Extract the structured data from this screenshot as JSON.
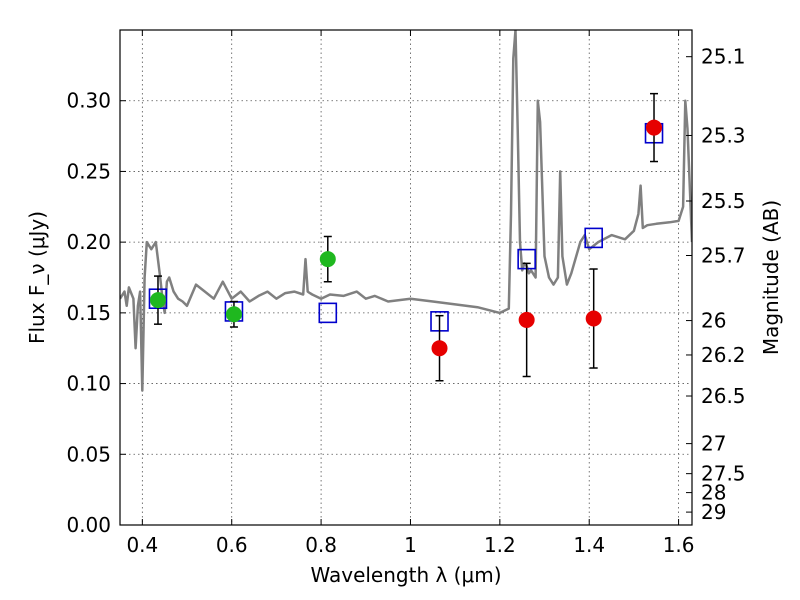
{
  "chart_data": {
    "type": "scatter",
    "xlabel": "Wavelength λ (μm)",
    "ylabel": "Flux F_ν (μJy)",
    "ylabel_right": "Magnitude (AB)",
    "xlim": [
      0.35,
      1.63
    ],
    "ylim": [
      0.0,
      0.35
    ],
    "grid": true,
    "x_ticks": [
      "0.4",
      "0.6",
      "0.8",
      "1",
      "1.2",
      "1.4",
      "1.6"
    ],
    "x_tick_values": [
      0.4,
      0.6,
      0.8,
      1.0,
      1.2,
      1.4,
      1.6
    ],
    "y_ticks": [
      "0.00",
      "0.05",
      "0.10",
      "0.15",
      "0.20",
      "0.25",
      "0.30"
    ],
    "y_tick_values": [
      0.0,
      0.05,
      0.1,
      0.15,
      0.2,
      0.25,
      0.3
    ],
    "mag_ticks": [
      "25.1",
      "25.3",
      "25.5",
      "25.7",
      "26",
      "26.2",
      "26.5",
      "27",
      "27.5",
      "28",
      "29"
    ],
    "mag_tick_values": [
      25.1,
      25.3,
      25.5,
      25.7,
      26.0,
      26.2,
      26.5,
      27.0,
      27.5,
      28.0,
      29.0
    ],
    "series": [
      {
        "name": "",
        "kind": "line",
        "color": "#808080",
        "x": [
          0.35,
          0.36,
          0.365,
          0.37,
          0.38,
          0.385,
          0.39,
          0.395,
          0.4,
          0.405,
          0.41,
          0.42,
          0.43,
          0.44,
          0.445,
          0.45,
          0.455,
          0.46,
          0.47,
          0.48,
          0.49,
          0.5,
          0.52,
          0.54,
          0.56,
          0.58,
          0.6,
          0.62,
          0.64,
          0.66,
          0.68,
          0.7,
          0.72,
          0.74,
          0.76,
          0.765,
          0.77,
          0.775,
          0.78,
          0.8,
          0.82,
          0.85,
          0.88,
          0.9,
          0.92,
          0.95,
          1.0,
          1.05,
          1.1,
          1.15,
          1.2,
          1.22,
          1.225,
          1.23,
          1.235,
          1.24,
          1.245,
          1.25,
          1.255,
          1.26,
          1.265,
          1.27,
          1.28,
          1.285,
          1.29,
          1.3,
          1.31,
          1.32,
          1.33,
          1.335,
          1.34,
          1.35,
          1.36,
          1.38,
          1.39,
          1.4,
          1.42,
          1.45,
          1.48,
          1.5,
          1.51,
          1.515,
          1.52,
          1.53,
          1.55,
          1.58,
          1.6,
          1.61,
          1.615,
          1.62,
          1.63
        ],
        "y": [
          0.16,
          0.165,
          0.155,
          0.168,
          0.16,
          0.125,
          0.155,
          0.165,
          0.095,
          0.175,
          0.2,
          0.195,
          0.2,
          0.175,
          0.16,
          0.15,
          0.172,
          0.175,
          0.165,
          0.16,
          0.158,
          0.155,
          0.17,
          0.165,
          0.16,
          0.172,
          0.16,
          0.165,
          0.158,
          0.162,
          0.165,
          0.16,
          0.164,
          0.165,
          0.163,
          0.188,
          0.165,
          0.164,
          0.163,
          0.16,
          0.163,
          0.162,
          0.165,
          0.16,
          0.162,
          0.158,
          0.16,
          0.158,
          0.156,
          0.154,
          0.15,
          0.153,
          0.22,
          0.33,
          0.35,
          0.28,
          0.2,
          0.18,
          0.185,
          0.183,
          0.178,
          0.18,
          0.175,
          0.3,
          0.285,
          0.19,
          0.175,
          0.17,
          0.175,
          0.25,
          0.19,
          0.17,
          0.178,
          0.2,
          0.205,
          0.195,
          0.2,
          0.205,
          0.202,
          0.208,
          0.22,
          0.24,
          0.21,
          0.212,
          0.213,
          0.214,
          0.215,
          0.225,
          0.3,
          0.28,
          0.2
        ]
      },
      {
        "name": "",
        "kind": "points",
        "marker": "circle",
        "color": "#1fb81f",
        "x": [
          0.435,
          0.605,
          0.815
        ],
        "y": [
          0.159,
          0.149,
          0.188
        ],
        "yerr": [
          0.017,
          0.009,
          0.016
        ]
      },
      {
        "name": "",
        "kind": "points",
        "marker": "circle",
        "color": "#e60000",
        "x": [
          1.065,
          1.26,
          1.41,
          1.545
        ],
        "y": [
          0.125,
          0.145,
          0.146,
          0.281
        ],
        "yerr": [
          0.023,
          0.04,
          0.035,
          0.024
        ]
      },
      {
        "name": "",
        "kind": "points",
        "marker": "open-square",
        "color": "#0000cc",
        "x": [
          0.435,
          0.605,
          0.815,
          1.065,
          1.26,
          1.41,
          1.545
        ],
        "y": [
          0.16,
          0.151,
          0.15,
          0.144,
          0.188,
          0.203,
          0.277
        ]
      }
    ]
  }
}
